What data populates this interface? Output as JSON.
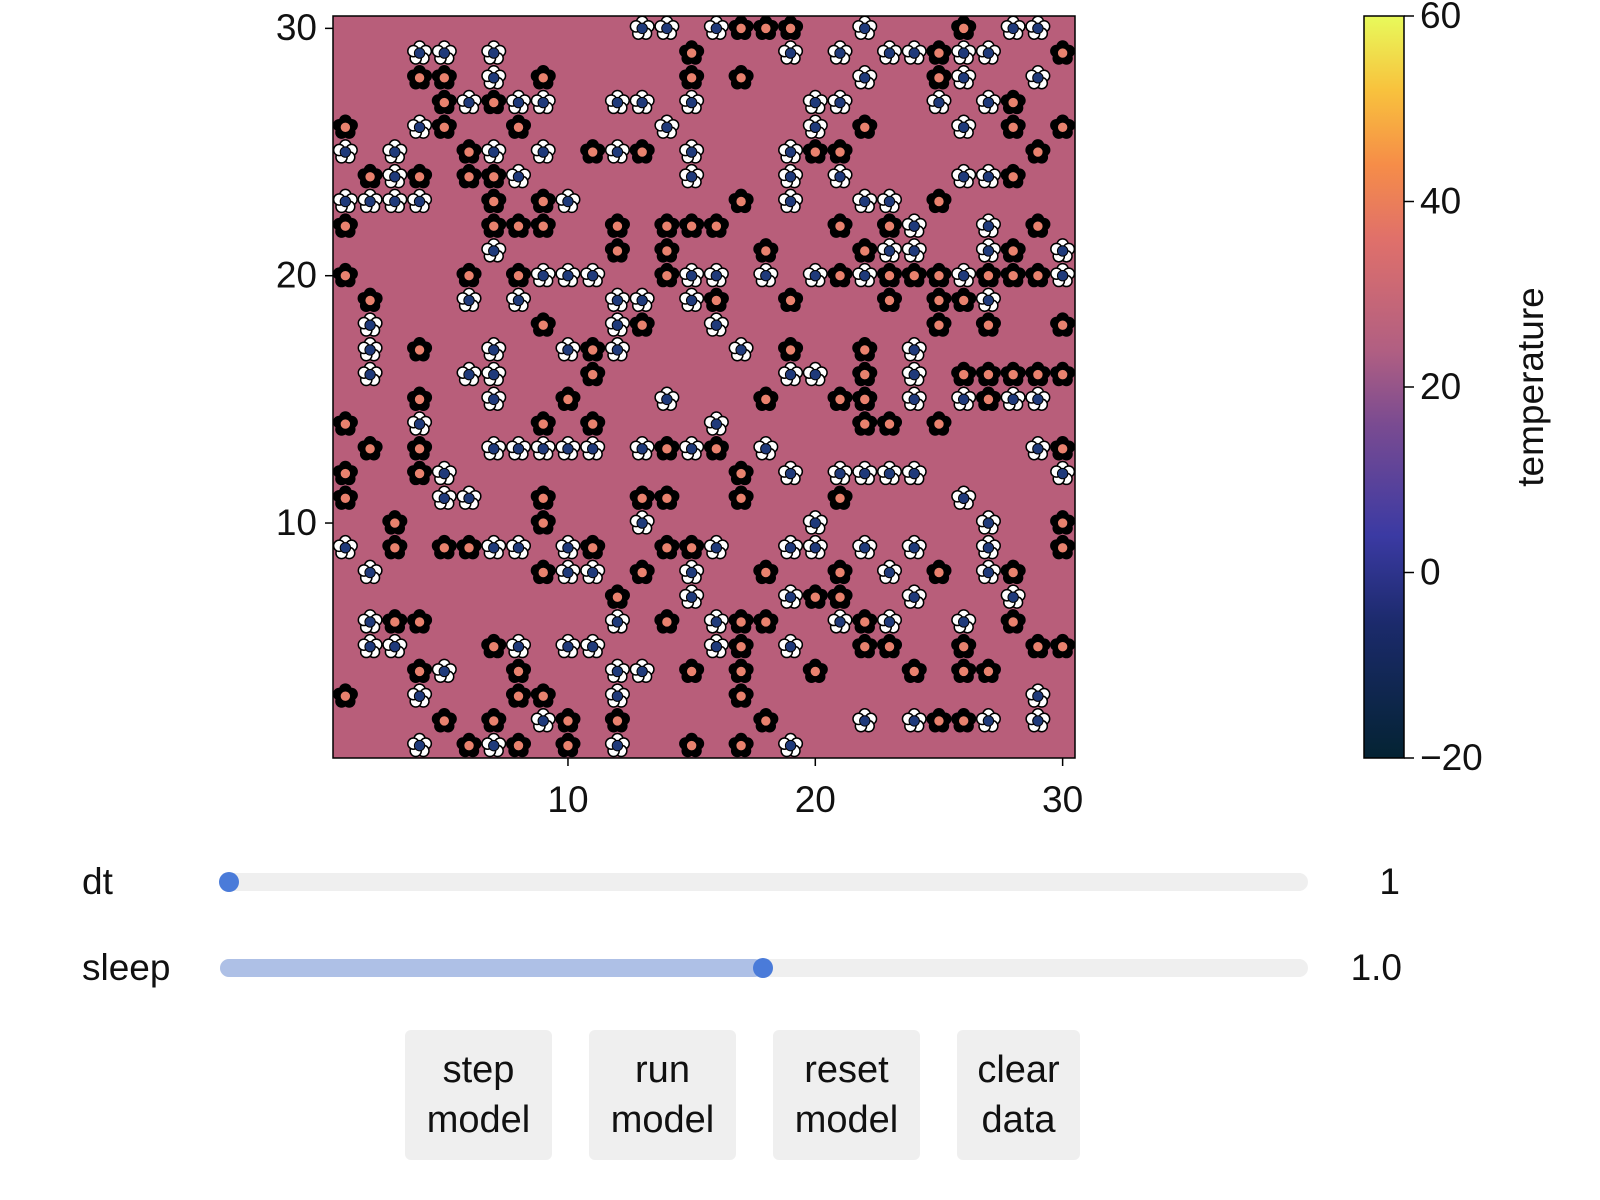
{
  "chart_data": {
    "type": "scatter",
    "xlim": [
      0.5,
      30.5
    ],
    "ylim": [
      0.5,
      30.5
    ],
    "xticks": [
      10,
      20,
      30
    ],
    "yticks": [
      10,
      20,
      30
    ],
    "heatmap_color": "#b85e7a",
    "series": [
      {
        "color": "#ffffff",
        "center_color": "#1f3a7a",
        "x": [
          13,
          14,
          16,
          22,
          28,
          29,
          4,
          5,
          7,
          19,
          21,
          23,
          24,
          26,
          27,
          7,
          22,
          26,
          29,
          6,
          8,
          9,
          12,
          13,
          15,
          20,
          21,
          25,
          27,
          4,
          14,
          20,
          26,
          1,
          3,
          7,
          9,
          12,
          15,
          19,
          3,
          8,
          15,
          19,
          21,
          26,
          27,
          1,
          2,
          3,
          4,
          10,
          19,
          22,
          23,
          24,
          27,
          7,
          23,
          24,
          27,
          30,
          9,
          10,
          11,
          15,
          16,
          18,
          20,
          22,
          26,
          30,
          6,
          8,
          12,
          13,
          15,
          27,
          2,
          12,
          16,
          2,
          7,
          10,
          12,
          17,
          24,
          2,
          6,
          7,
          19,
          20,
          24,
          7,
          14,
          24,
          26,
          28,
          29,
          4,
          16,
          7,
          8,
          9,
          10,
          11,
          13,
          15,
          18,
          29,
          5,
          19,
          21,
          22,
          23,
          24,
          30,
          5,
          6,
          26,
          13,
          20,
          27,
          1,
          7,
          8,
          10,
          16,
          19,
          20,
          22,
          24,
          27,
          2,
          10,
          11,
          15,
          23,
          27,
          15,
          19,
          24,
          28,
          2,
          12,
          16,
          21,
          23,
          26,
          2,
          3,
          8,
          10,
          11,
          16,
          19,
          5,
          12,
          13,
          4,
          12,
          29,
          9,
          22,
          24,
          27,
          29,
          4,
          7,
          12,
          19
        ],
        "values": [
          30,
          30,
          30,
          30,
          30,
          30,
          29,
          29,
          29,
          29,
          29,
          29,
          29,
          29,
          29,
          28,
          28,
          28,
          28,
          27,
          27,
          27,
          27,
          27,
          27,
          27,
          27,
          27,
          27,
          26,
          26,
          26,
          26,
          25,
          25,
          25,
          25,
          25,
          25,
          25,
          24,
          24,
          24,
          24,
          24,
          24,
          24,
          23,
          23,
          23,
          23,
          23,
          23,
          23,
          23,
          22,
          22,
          21,
          21,
          21,
          21,
          21,
          20,
          20,
          20,
          20,
          20,
          20,
          20,
          20,
          20,
          20,
          19,
          19,
          19,
          19,
          19,
          19,
          18,
          18,
          18,
          17,
          17,
          17,
          17,
          17,
          17,
          16,
          16,
          16,
          16,
          16,
          16,
          15,
          15,
          15,
          15,
          15,
          15,
          14,
          14,
          13,
          13,
          13,
          13,
          13,
          13,
          13,
          13,
          13,
          12,
          12,
          12,
          12,
          12,
          12,
          12,
          11,
          11,
          11,
          10,
          10,
          10,
          9,
          9,
          9,
          9,
          9,
          9,
          9,
          9,
          9,
          9,
          8,
          8,
          8,
          8,
          8,
          8,
          7,
          7,
          7,
          7,
          6,
          6,
          6,
          6,
          6,
          6,
          5,
          5,
          5,
          5,
          5,
          5,
          5,
          4,
          4,
          4,
          3,
          3,
          3,
          2,
          2,
          2,
          2,
          2,
          1,
          1,
          1,
          1
        ]
      },
      {
        "color": "#000000",
        "center_color": "#e8826e",
        "x": [
          17,
          18,
          19,
          26,
          15,
          25,
          30,
          4,
          5,
          9,
          15,
          17,
          25,
          5,
          7,
          28,
          1,
          5,
          8,
          22,
          28,
          30,
          6,
          11,
          13,
          20,
          21,
          29,
          2,
          4,
          6,
          7,
          28,
          7,
          9,
          17,
          25,
          1,
          7,
          8,
          9,
          12,
          14,
          15,
          16,
          21,
          23,
          29,
          12,
          14,
          18,
          22,
          28,
          1,
          6,
          8,
          14,
          21,
          23,
          24,
          25,
          27,
          28,
          29,
          2,
          16,
          19,
          23,
          25,
          26,
          9,
          13,
          25,
          27,
          30,
          4,
          11,
          19,
          22,
          11,
          22,
          26,
          27,
          28,
          29,
          30,
          4,
          10,
          18,
          21,
          22,
          27,
          1,
          9,
          11,
          22,
          23,
          25,
          2,
          4,
          14,
          16,
          30,
          1,
          4,
          17,
          1,
          9,
          13,
          14,
          17,
          21,
          3,
          9,
          30,
          3,
          5,
          6,
          11,
          14,
          15,
          30,
          9,
          13,
          18,
          21,
          25,
          28,
          12,
          20,
          21,
          3,
          4,
          14,
          17,
          18,
          22,
          28,
          7,
          17,
          22,
          23,
          26,
          29,
          30,
          4,
          8,
          15,
          17,
          20,
          24,
          26,
          27,
          1,
          8,
          9,
          17,
          5,
          7,
          10,
          12,
          18,
          25,
          26,
          6,
          8,
          10,
          15,
          17
        ],
        "values": [
          30,
          30,
          30,
          30,
          29,
          29,
          29,
          28,
          28,
          28,
          28,
          28,
          28,
          27,
          27,
          27,
          26,
          26,
          26,
          26,
          26,
          26,
          25,
          25,
          25,
          25,
          25,
          25,
          24,
          24,
          24,
          24,
          24,
          23,
          23,
          23,
          23,
          22,
          22,
          22,
          22,
          22,
          22,
          22,
          22,
          22,
          22,
          22,
          21,
          21,
          21,
          21,
          21,
          20,
          20,
          20,
          20,
          20,
          20,
          20,
          20,
          20,
          20,
          20,
          19,
          19,
          19,
          19,
          19,
          19,
          18,
          18,
          18,
          18,
          18,
          17,
          17,
          17,
          17,
          16,
          16,
          16,
          16,
          16,
          16,
          16,
          15,
          15,
          15,
          15,
          15,
          15,
          14,
          14,
          14,
          14,
          14,
          14,
          13,
          13,
          13,
          13,
          13,
          12,
          12,
          12,
          11,
          11,
          11,
          11,
          11,
          11,
          10,
          10,
          10,
          9,
          9,
          9,
          9,
          9,
          9,
          9,
          8,
          8,
          8,
          8,
          8,
          8,
          7,
          7,
          7,
          6,
          6,
          6,
          6,
          6,
          6,
          6,
          5,
          5,
          5,
          5,
          5,
          5,
          5,
          4,
          4,
          4,
          4,
          4,
          4,
          4,
          4,
          3,
          3,
          3,
          3,
          2,
          2,
          2,
          2,
          2,
          2,
          2,
          1,
          1,
          1,
          1,
          1
        ]
      }
    ]
  },
  "colorbar": {
    "label": "temperature",
    "limits": [
      -20,
      60
    ],
    "ticks": [
      {
        "value": -20,
        "label": "−20"
      },
      0,
      20,
      40,
      60
    ]
  },
  "controls": {
    "sliders": [
      {
        "label": "dt",
        "value": "1"
      },
      {
        "label": "sleep",
        "value": "1.0"
      }
    ],
    "buttons": [
      "step model",
      "run model",
      "reset model",
      "clear data"
    ]
  }
}
